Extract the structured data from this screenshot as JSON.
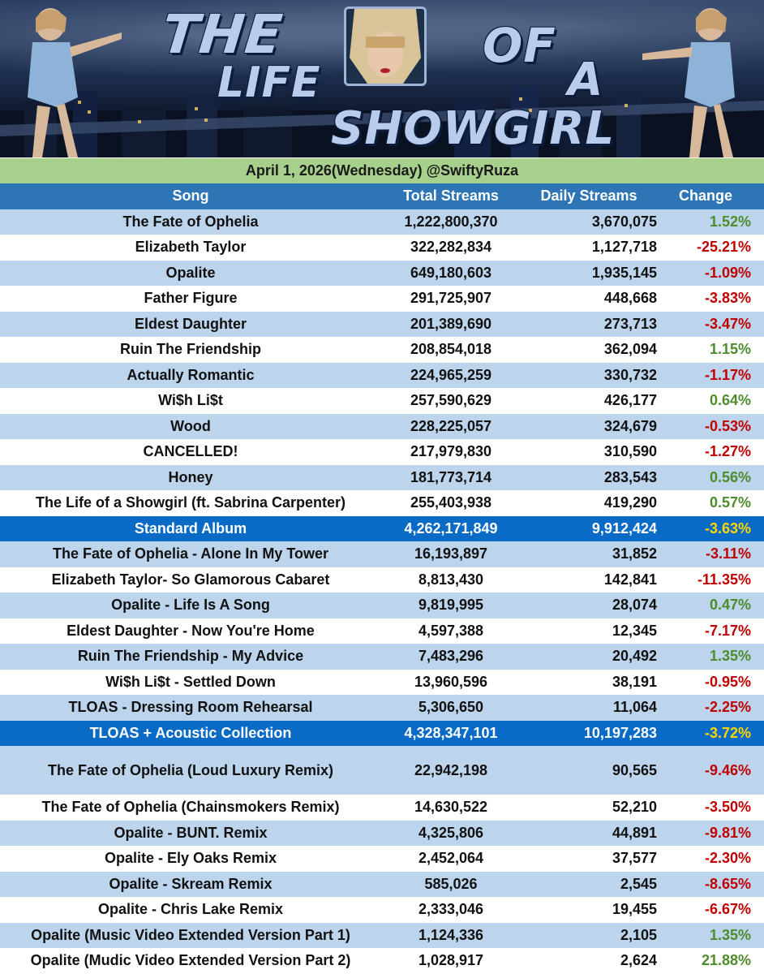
{
  "banner": {
    "title_word_1": "THE",
    "title_word_2": "LIFE",
    "title_word_3": "OF",
    "title_word_4": "A",
    "title_word_5": "SHOWGIRL"
  },
  "date_line": "April 1, 2026(Wednesday) @SwiftyRuza",
  "colors": {
    "header_blue": "#2e75b6",
    "total_blue": "#0a6bc7",
    "row_light_blue": "#bcd4ec",
    "date_green": "#a8d08d",
    "positive_green": "#4e8c2c",
    "negative_red": "#c00000",
    "total_change_yellow": "#ffd700"
  },
  "chart_data": {
    "type": "table",
    "columns": [
      "Song",
      "Total Streams",
      "Daily Streams",
      "Change"
    ],
    "rows": [
      {
        "song": "The Fate of Ophelia",
        "total": "1,222,800,370",
        "daily": "3,670,075",
        "change": "1.52%",
        "dir": "pos"
      },
      {
        "song": "Elizabeth Taylor",
        "total": "322,282,834",
        "daily": "1,127,718",
        "change": "-25.21%",
        "dir": "neg"
      },
      {
        "song": "Opalite",
        "total": "649,180,603",
        "daily": "1,935,145",
        "change": "-1.09%",
        "dir": "neg"
      },
      {
        "song": "Father Figure",
        "total": "291,725,907",
        "daily": "448,668",
        "change": "-3.83%",
        "dir": "neg"
      },
      {
        "song": "Eldest Daughter",
        "total": "201,389,690",
        "daily": "273,713",
        "change": "-3.47%",
        "dir": "neg"
      },
      {
        "song": "Ruin The Friendship",
        "total": "208,854,018",
        "daily": "362,094",
        "change": "1.15%",
        "dir": "pos"
      },
      {
        "song": "Actually Romantic",
        "total": "224,965,259",
        "daily": "330,732",
        "change": "-1.17%",
        "dir": "neg"
      },
      {
        "song": "Wi$h Li$t",
        "total": "257,590,629",
        "daily": "426,177",
        "change": "0.64%",
        "dir": "pos"
      },
      {
        "song": "Wood",
        "total": "228,225,057",
        "daily": "324,679",
        "change": "-0.53%",
        "dir": "neg"
      },
      {
        "song": "CANCELLED!",
        "total": "217,979,830",
        "daily": "310,590",
        "change": "-1.27%",
        "dir": "neg"
      },
      {
        "song": "Honey",
        "total": "181,773,714",
        "daily": "283,543",
        "change": "0.56%",
        "dir": "pos"
      },
      {
        "song": "The Life of a Showgirl (ft. Sabrina Carpenter)",
        "total": "255,403,938",
        "daily": "419,290",
        "change": "0.57%",
        "dir": "pos"
      },
      {
        "song": "Standard Album",
        "total": "4,262,171,849",
        "daily": "9,912,424",
        "change": "-3.63%",
        "dir": "total"
      },
      {
        "song": "The Fate of Ophelia - Alone In My Tower",
        "total": "16,193,897",
        "daily": "31,852",
        "change": "-3.11%",
        "dir": "neg"
      },
      {
        "song": "Elizabeth Taylor- So Glamorous Cabaret",
        "total": "8,813,430",
        "daily": "142,841",
        "change": "-11.35%",
        "dir": "neg"
      },
      {
        "song": "Opalite - Life Is A Song",
        "total": "9,819,995",
        "daily": "28,074",
        "change": "0.47%",
        "dir": "pos"
      },
      {
        "song": "Eldest Daughter - Now You're Home",
        "total": "4,597,388",
        "daily": "12,345",
        "change": "-7.17%",
        "dir": "neg"
      },
      {
        "song": "Ruin The Friendship - My Advice",
        "total": "7,483,296",
        "daily": "20,492",
        "change": "1.35%",
        "dir": "pos"
      },
      {
        "song": "Wi$h Li$t - Settled Down",
        "total": "13,960,596",
        "daily": "38,191",
        "change": "-0.95%",
        "dir": "neg"
      },
      {
        "song": "TLOAS - Dressing Room Rehearsal",
        "total": "5,306,650",
        "daily": "11,064",
        "change": "-2.25%",
        "dir": "neg"
      },
      {
        "song": "TLOAS + Acoustic Collection",
        "total": "4,328,347,101",
        "daily": "10,197,283",
        "change": "-3.72%",
        "dir": "total"
      },
      {
        "song": "The Fate of Ophelia  (Loud Luxury Remix)",
        "total": "22,942,198",
        "daily": "90,565",
        "change": "-9.46%",
        "dir": "neg"
      },
      {
        "song": "The Fate of Ophelia (Chainsmokers Remix)",
        "total": "14,630,522",
        "daily": "52,210",
        "change": "-3.50%",
        "dir": "neg"
      },
      {
        "song": "Opalite - BUNT. Remix",
        "total": "4,325,806",
        "daily": "44,891",
        "change": "-9.81%",
        "dir": "neg"
      },
      {
        "song": "Opalite - Ely Oaks Remix",
        "total": "2,452,064",
        "daily": "37,577",
        "change": "-2.30%",
        "dir": "neg"
      },
      {
        "song": "Opalite - Skream Remix",
        "total": "585,026",
        "daily": "2,545",
        "change": "-8.65%",
        "dir": "neg"
      },
      {
        "song": "Opalite - Chris Lake Remix",
        "total": "2,333,046",
        "daily": "19,455",
        "change": "-6.67%",
        "dir": "neg"
      },
      {
        "song": "Opalite (Music Video Extended Version Part 1)",
        "total": "1,124,336",
        "daily": "2,105",
        "change": "1.35%",
        "dir": "pos"
      },
      {
        "song": "Opalite (Mudic Video Extended Version Part 2)",
        "total": "1,028,917",
        "daily": "2,624",
        "change": "21.88%",
        "dir": "pos"
      }
    ]
  }
}
